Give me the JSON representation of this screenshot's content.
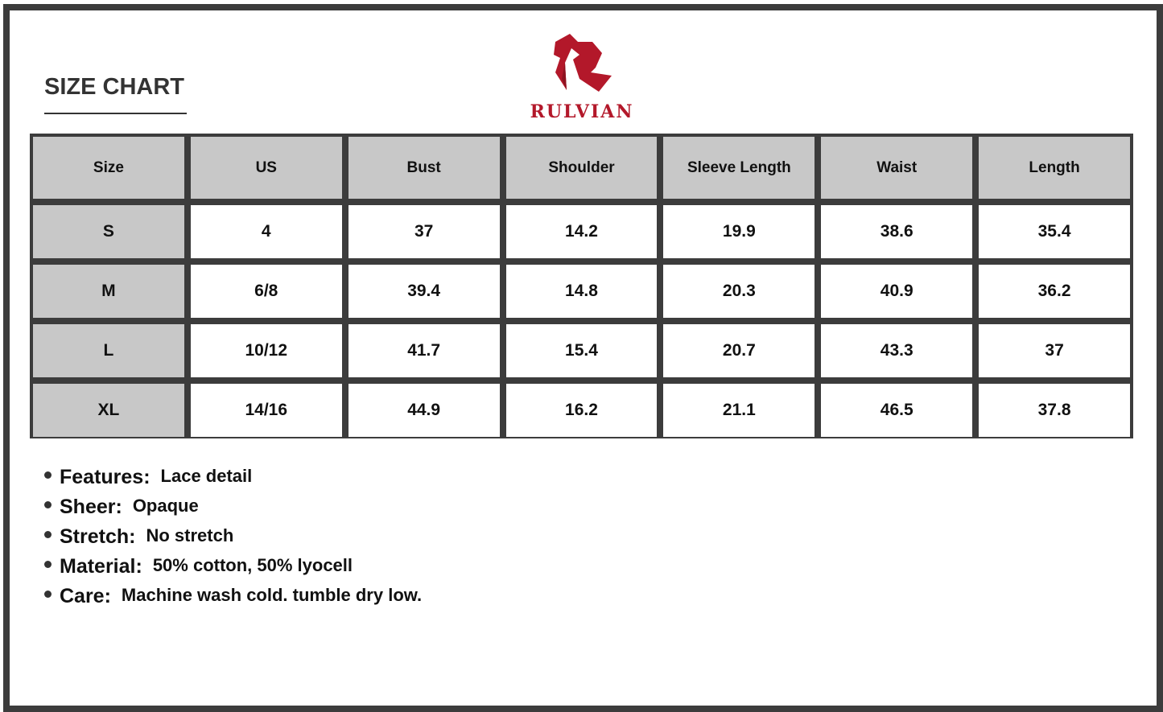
{
  "title": "SIZE CHART",
  "brand": {
    "name": "RULVIAN",
    "color": "#b3182a"
  },
  "table": {
    "headers": [
      "Size",
      "US",
      "Bust",
      "Shoulder",
      "Sleeve Length",
      "Waist",
      "Length"
    ],
    "rows": [
      [
        "S",
        "4",
        "37",
        "14.2",
        "19.9",
        "38.6",
        "35.4"
      ],
      [
        "M",
        "6/8",
        "39.4",
        "14.8",
        "20.3",
        "40.9",
        "36.2"
      ],
      [
        "L",
        "10/12",
        "41.7",
        "15.4",
        "20.7",
        "43.3",
        "37"
      ],
      [
        "XL",
        "14/16",
        "44.9",
        "16.2",
        "21.1",
        "46.5",
        "37.8"
      ]
    ]
  },
  "features": [
    {
      "label": "Features:",
      "value": "Lace detail"
    },
    {
      "label": "Sheer:",
      "value": "Opaque"
    },
    {
      "label": "Stretch:",
      "value": "No stretch"
    },
    {
      "label": "Material:",
      "value": "50% cotton, 50% lyocell"
    },
    {
      "label": "Care:",
      "value": "Machine wash cold. tumble dry low."
    }
  ]
}
